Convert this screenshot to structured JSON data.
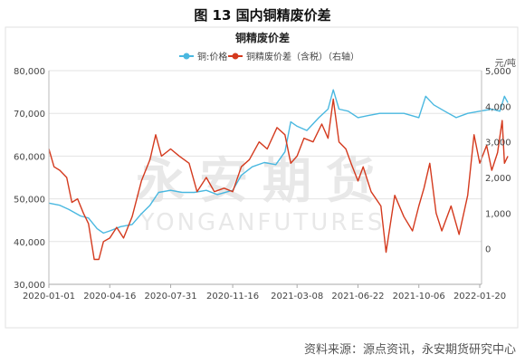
{
  "figure_caption": "图 13 国内铜精废价差",
  "source_note": "资料来源：源点资讯，永安期货研究中心",
  "watermark": {
    "main": "永安期货",
    "sub": "YONGANFUTURES"
  },
  "chart_data": {
    "type": "line",
    "title": "铜精废价差",
    "grid": true,
    "legend_position": "top",
    "y_right_unit": "元/吨",
    "x_ticks": [
      "2020-01-01",
      "2020-04-16",
      "2020-07-31",
      "2020-11-16",
      "2021-03-08",
      "2021-06-22",
      "2021-10-06",
      "2022-01-20"
    ],
    "y_left": {
      "min": 30000,
      "max": 80000,
      "ticks": [
        30000,
        40000,
        50000,
        60000,
        70000,
        80000
      ],
      "tick_labels": [
        "30,000",
        "40,000",
        "50,000",
        "60,000",
        "70,000",
        "80,000"
      ]
    },
    "y_right": {
      "min": -1000,
      "max": 5000,
      "ticks": [
        0,
        1000,
        2000,
        3000,
        4000,
        5000
      ],
      "tick_labels": [
        "0",
        "1,000",
        "2,000",
        "3,000",
        "4,000",
        "5,000"
      ]
    },
    "series": [
      {
        "name": "铜:价格",
        "axis": "left",
        "color": "#4ab8e0",
        "points": [
          [
            "2020-01-01",
            49000
          ],
          [
            "2020-01-20",
            48500
          ],
          [
            "2020-02-05",
            47500
          ],
          [
            "2020-02-25",
            46000
          ],
          [
            "2020-03-10",
            45500
          ],
          [
            "2020-03-25",
            43000
          ],
          [
            "2020-04-05",
            42000
          ],
          [
            "2020-04-16",
            42500
          ],
          [
            "2020-05-05",
            43500
          ],
          [
            "2020-05-25",
            44000
          ],
          [
            "2020-06-10",
            46500
          ],
          [
            "2020-06-25",
            48500
          ],
          [
            "2020-07-10",
            51500
          ],
          [
            "2020-07-31",
            52000
          ],
          [
            "2020-08-20",
            51500
          ],
          [
            "2020-09-10",
            51500
          ],
          [
            "2020-10-01",
            52000
          ],
          [
            "2020-10-20",
            51000
          ],
          [
            "2020-11-16",
            52000
          ],
          [
            "2020-12-01",
            55500
          ],
          [
            "2020-12-20",
            57500
          ],
          [
            "2021-01-10",
            58500
          ],
          [
            "2021-01-30",
            58000
          ],
          [
            "2021-02-15",
            61000
          ],
          [
            "2021-02-25",
            68000
          ],
          [
            "2021-03-08",
            67000
          ],
          [
            "2021-03-25",
            66000
          ],
          [
            "2021-04-15",
            69000
          ],
          [
            "2021-05-01",
            71000
          ],
          [
            "2021-05-10",
            75500
          ],
          [
            "2021-05-20",
            71000
          ],
          [
            "2021-06-05",
            70500
          ],
          [
            "2021-06-22",
            69000
          ],
          [
            "2021-07-10",
            69500
          ],
          [
            "2021-07-30",
            70000
          ],
          [
            "2021-08-20",
            70000
          ],
          [
            "2021-09-10",
            70000
          ],
          [
            "2021-10-06",
            69000
          ],
          [
            "2021-10-18",
            74000
          ],
          [
            "2021-11-01",
            72000
          ],
          [
            "2021-11-20",
            70500
          ],
          [
            "2021-12-10",
            69000
          ],
          [
            "2021-12-30",
            70000
          ],
          [
            "2022-01-20",
            70500
          ],
          [
            "2022-02-10",
            71000
          ],
          [
            "2022-02-24",
            70500
          ],
          [
            "2022-03-04",
            74000
          ],
          [
            "2022-03-10",
            72500
          ]
        ]
      },
      {
        "name": "铜精废价差（含税）（右轴）",
        "axis": "right",
        "color": "#d43a1e",
        "points": [
          [
            "2020-01-01",
            2800
          ],
          [
            "2020-01-10",
            2300
          ],
          [
            "2020-01-20",
            2200
          ],
          [
            "2020-02-01",
            2000
          ],
          [
            "2020-02-10",
            1300
          ],
          [
            "2020-02-20",
            1400
          ],
          [
            "2020-03-01",
            1000
          ],
          [
            "2020-03-10",
            700
          ],
          [
            "2020-03-20",
            -300
          ],
          [
            "2020-03-28",
            -300
          ],
          [
            "2020-04-05",
            200
          ],
          [
            "2020-04-16",
            300
          ],
          [
            "2020-04-28",
            600
          ],
          [
            "2020-05-10",
            300
          ],
          [
            "2020-05-25",
            900
          ],
          [
            "2020-06-10",
            1900
          ],
          [
            "2020-06-25",
            2500
          ],
          [
            "2020-07-05",
            3200
          ],
          [
            "2020-07-15",
            2600
          ],
          [
            "2020-07-31",
            2800
          ],
          [
            "2020-08-15",
            2600
          ],
          [
            "2020-09-01",
            2400
          ],
          [
            "2020-09-15",
            1600
          ],
          [
            "2020-10-01",
            2000
          ],
          [
            "2020-10-15",
            1600
          ],
          [
            "2020-11-01",
            1700
          ],
          [
            "2020-11-16",
            1600
          ],
          [
            "2020-12-01",
            2300
          ],
          [
            "2020-12-15",
            2500
          ],
          [
            "2021-01-01",
            3000
          ],
          [
            "2021-01-15",
            2800
          ],
          [
            "2021-02-01",
            3400
          ],
          [
            "2021-02-15",
            3200
          ],
          [
            "2021-02-25",
            2400
          ],
          [
            "2021-03-08",
            2600
          ],
          [
            "2021-03-20",
            3100
          ],
          [
            "2021-04-05",
            3000
          ],
          [
            "2021-04-20",
            3500
          ],
          [
            "2021-05-01",
            3100
          ],
          [
            "2021-05-10",
            4200
          ],
          [
            "2021-05-20",
            3000
          ],
          [
            "2021-06-01",
            2800
          ],
          [
            "2021-06-10",
            2400
          ],
          [
            "2021-06-22",
            1900
          ],
          [
            "2021-07-01",
            2300
          ],
          [
            "2021-07-15",
            1600
          ],
          [
            "2021-08-01",
            1200
          ],
          [
            "2021-08-10",
            -100
          ],
          [
            "2021-08-25",
            1500
          ],
          [
            "2021-09-10",
            900
          ],
          [
            "2021-09-25",
            500
          ],
          [
            "2021-10-06",
            1200
          ],
          [
            "2021-10-15",
            1700
          ],
          [
            "2021-10-25",
            2400
          ],
          [
            "2021-11-05",
            1000
          ],
          [
            "2021-11-15",
            500
          ],
          [
            "2021-12-01",
            1200
          ],
          [
            "2021-12-15",
            400
          ],
          [
            "2021-12-30",
            1500
          ],
          [
            "2022-01-10",
            3200
          ],
          [
            "2022-01-20",
            2400
          ],
          [
            "2022-02-01",
            2900
          ],
          [
            "2022-02-10",
            2200
          ],
          [
            "2022-02-20",
            2700
          ],
          [
            "2022-02-28",
            3600
          ],
          [
            "2022-03-04",
            2400
          ],
          [
            "2022-03-10",
            2600
          ]
        ]
      }
    ]
  }
}
